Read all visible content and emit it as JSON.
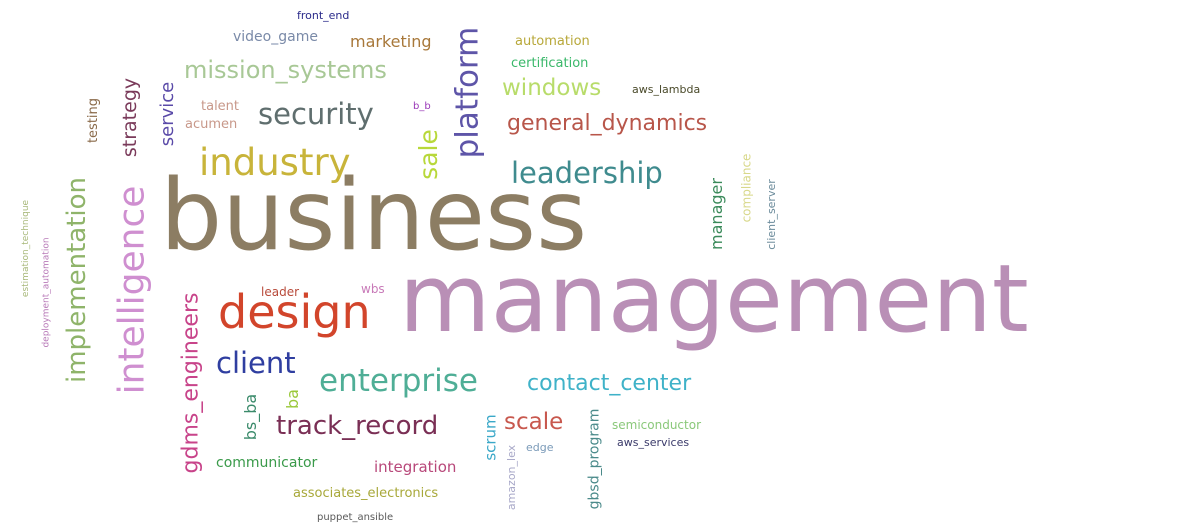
{
  "words": [
    {
      "text": "management",
      "color": "#b98fb6"
    },
    {
      "text": "business",
      "color": "#8c7d63"
    },
    {
      "text": "design",
      "color": "#d2452b"
    },
    {
      "text": "industry",
      "color": "#c8b43a"
    },
    {
      "text": "intelligence",
      "color": "#cf8fd0"
    },
    {
      "text": "implementation",
      "color": "#8fb46a"
    },
    {
      "text": "enterprise",
      "color": "#4fae96"
    },
    {
      "text": "security",
      "color": "#5f6e6e"
    },
    {
      "text": "platform",
      "color": "#5e55a8"
    },
    {
      "text": "leadership",
      "color": "#3f8b8e"
    },
    {
      "text": "client",
      "color": "#2f3ea0"
    },
    {
      "text": "track_record",
      "color": "#7a2f55"
    },
    {
      "text": "mission_systems",
      "color": "#a8c896"
    },
    {
      "text": "gdms_engineers",
      "color": "#c8448a"
    },
    {
      "text": "contact_center",
      "color": "#3fb2c8"
    },
    {
      "text": "general_dynamics",
      "color": "#b8564a"
    },
    {
      "text": "sale",
      "color": "#b8d83a"
    },
    {
      "text": "windows",
      "color": "#b8dc6a"
    },
    {
      "text": "scale",
      "color": "#c8584e"
    },
    {
      "text": "strategy",
      "color": "#7a3a5a"
    },
    {
      "text": "service",
      "color": "#5a4aa8"
    },
    {
      "text": "manager",
      "color": "#3a8a5a"
    },
    {
      "text": "bs_ba",
      "color": "#3a8a6a"
    },
    {
      "text": "ba",
      "color": "#9ac83a"
    },
    {
      "text": "marketing",
      "color": "#a8783a"
    },
    {
      "text": "video_game",
      "color": "#7a8aa8"
    },
    {
      "text": "integration",
      "color": "#b8487a"
    },
    {
      "text": "scrum",
      "color": "#3aa8c8"
    },
    {
      "text": "gbsd_program",
      "color": "#4a8a8a"
    },
    {
      "text": "associates_electronics",
      "color": "#a8a83a"
    },
    {
      "text": "communicator",
      "color": "#3a9a4a"
    },
    {
      "text": "automation",
      "color": "#b8a83a"
    },
    {
      "text": "certification",
      "color": "#3ab86a"
    },
    {
      "text": "talent",
      "color": "#c8988a"
    },
    {
      "text": "acumen",
      "color": "#c8988a"
    },
    {
      "text": "testing",
      "color": "#8a6a4a"
    },
    {
      "text": "semiconductor",
      "color": "#8ac87a"
    },
    {
      "text": "compliance",
      "color": "#d8d88a"
    },
    {
      "text": "aws_services",
      "color": "#3a3a6a"
    },
    {
      "text": "aws_lambda",
      "color": "#4a4a2a"
    },
    {
      "text": "client_server",
      "color": "#6a8a9a"
    },
    {
      "text": "leader",
      "color": "#b84a3a"
    },
    {
      "text": "wbs",
      "color": "#c87ab8"
    },
    {
      "text": "edge",
      "color": "#7a9ab8"
    },
    {
      "text": "amazon_lex",
      "color": "#a8a8c8"
    },
    {
      "text": "b_b",
      "color": "#9a3ab8"
    },
    {
      "text": "front_end",
      "color": "#2a2a8a"
    },
    {
      "text": "puppet_ansible",
      "color": "#5a5a5a"
    },
    {
      "text": "estimation_technique",
      "color": "#a8b87a"
    },
    {
      "text": "deployment_automation",
      "color": "#b87ab8"
    }
  ]
}
